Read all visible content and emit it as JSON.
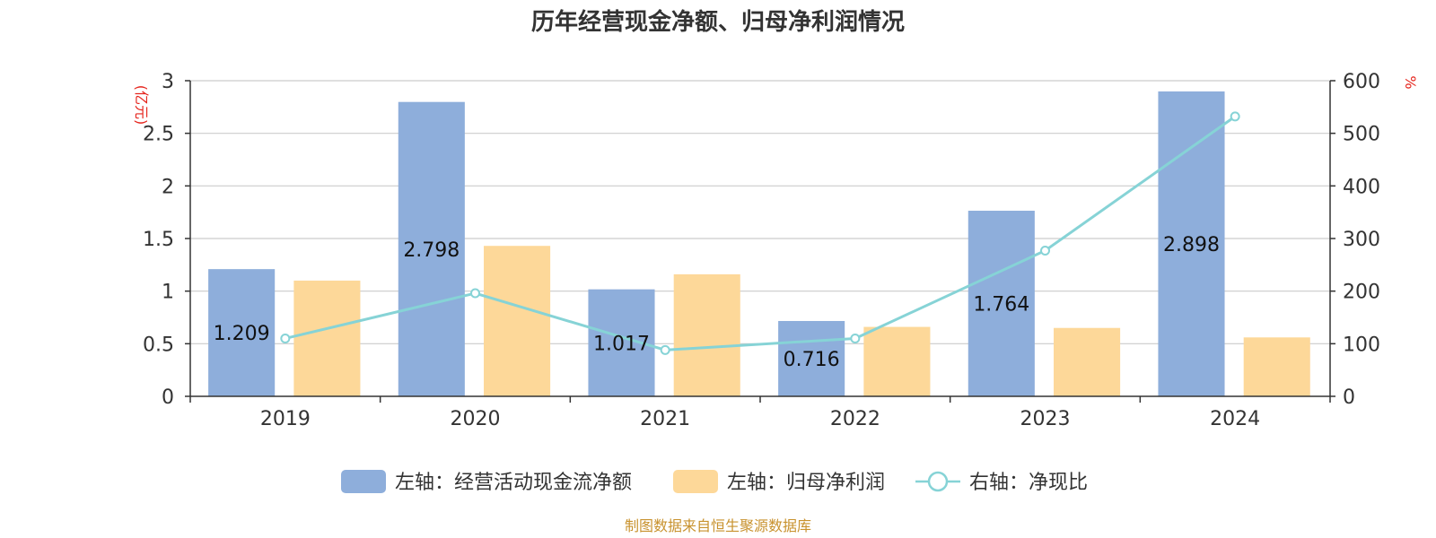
{
  "chart_data": {
    "type": "bar",
    "title": "历年经营现金净额、归母净利润情况",
    "categories": [
      "2019",
      "2020",
      "2021",
      "2022",
      "2023",
      "2024"
    ],
    "series": [
      {
        "name": "左轴：经营活动现金流净额",
        "axis": "left",
        "type": "bar",
        "color": "#8eaedb",
        "values": [
          1.209,
          2.798,
          1.017,
          0.716,
          1.764,
          2.898
        ],
        "labels": [
          "1.209",
          "2.798",
          "1.017",
          "0.716",
          "1.764",
          "2.898"
        ]
      },
      {
        "name": "左轴：归母净利润",
        "axis": "left",
        "type": "bar",
        "color": "#fdd899",
        "values": [
          1.1,
          1.43,
          1.16,
          0.66,
          0.65,
          0.56
        ]
      },
      {
        "name": "右轴：净现比",
        "axis": "right",
        "type": "line",
        "color": "#86d3d6",
        "values": [
          110,
          196,
          88,
          110,
          277,
          532
        ]
      }
    ],
    "left_axis": {
      "unit": "(亿元)",
      "ylim": [
        0,
        3
      ],
      "ticks": [
        "0",
        "0.5",
        "1",
        "1.5",
        "2",
        "2.5",
        "3"
      ]
    },
    "right_axis": {
      "unit": "%",
      "ylim": [
        0,
        600
      ],
      "ticks": [
        "0",
        "100",
        "200",
        "300",
        "400",
        "500",
        "600"
      ]
    },
    "grid": true,
    "legend_position": "bottom"
  },
  "source": "制图数据来自恒生聚源数据库"
}
